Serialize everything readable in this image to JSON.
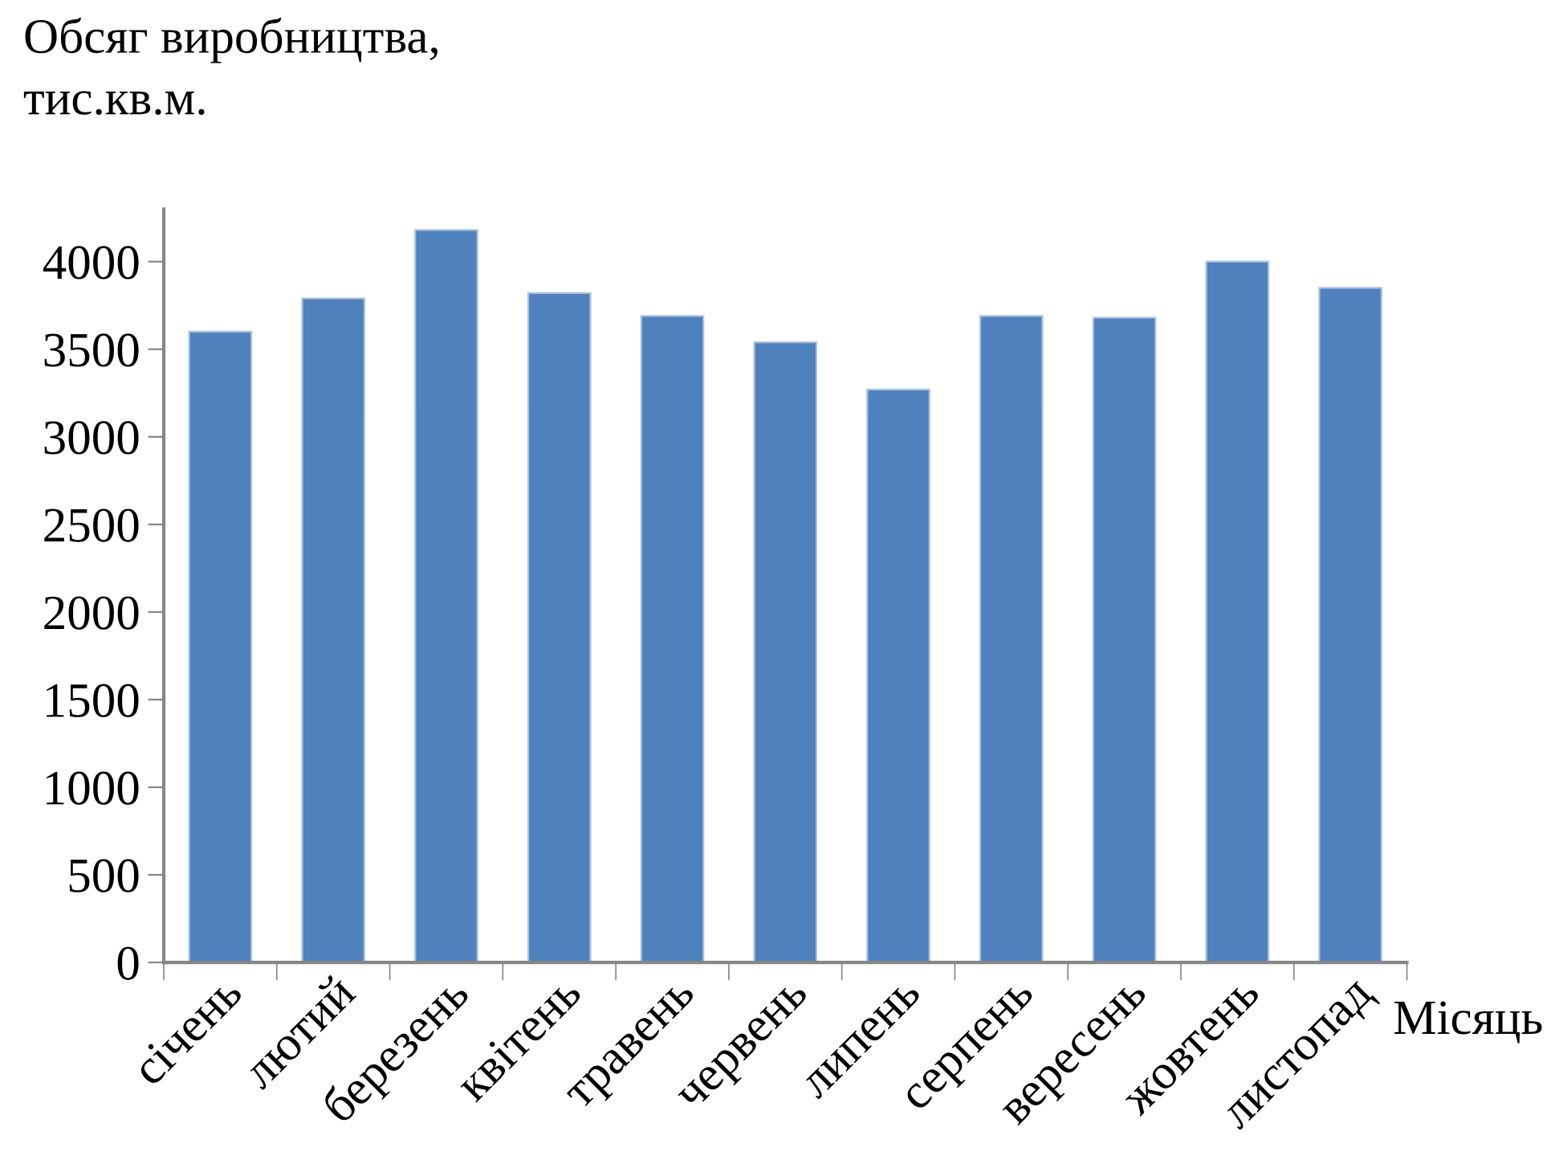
{
  "chart_data": {
    "type": "bar",
    "ylabel": "Обсяг виробництва,\nтис.кв.м.",
    "xlabel": "Місяць",
    "categories": [
      "січень",
      "лютий",
      "березень",
      "квітень",
      "травень",
      "червень",
      "липень",
      "серпень",
      "вересень",
      "жовтень",
      "листопад"
    ],
    "values": [
      3600,
      3790,
      4180,
      3820,
      3690,
      3540,
      3270,
      3690,
      3680,
      4000,
      3850
    ],
    "color": "#4f81bd",
    "ylim": [
      0,
      4300
    ],
    "yticks": [
      0,
      500,
      1000,
      1500,
      2000,
      2500,
      3000,
      3500,
      4000
    ],
    "grid": false,
    "legend": false
  }
}
